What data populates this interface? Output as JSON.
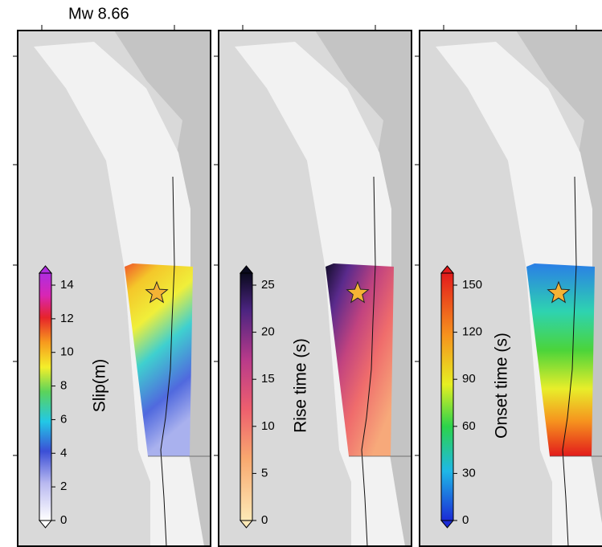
{
  "title": "Mw 8.66",
  "panels": [
    {
      "label": "Slip(m)",
      "ticks": [
        0,
        2,
        4,
        6,
        8,
        10,
        12,
        14
      ]
    },
    {
      "label": "Rise time (s)",
      "ticks": [
        0,
        5,
        10,
        15,
        20,
        25
      ]
    },
    {
      "label": "Onset time (s)",
      "ticks": [
        0,
        30,
        60,
        90,
        120,
        150
      ]
    }
  ]
}
